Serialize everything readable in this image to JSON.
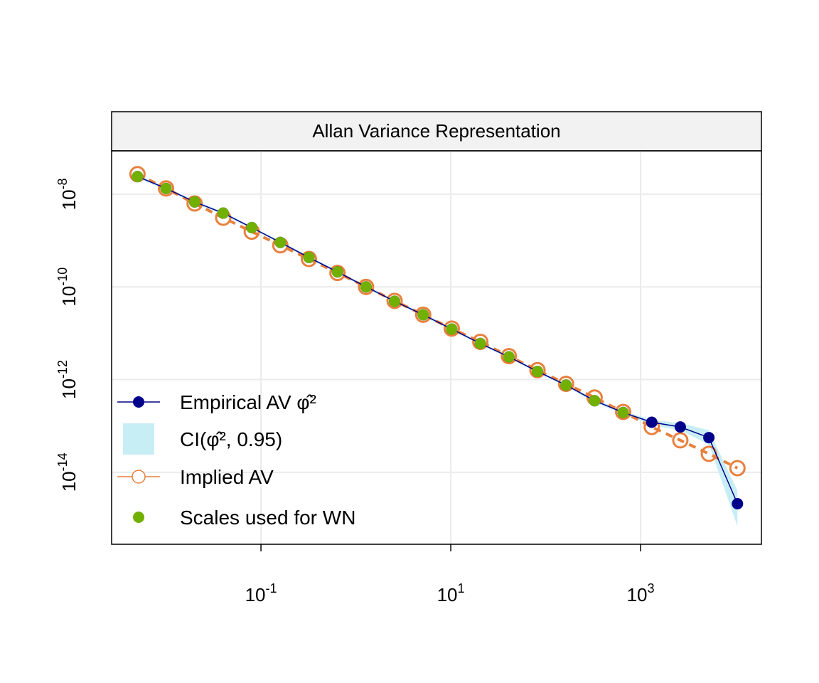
{
  "chart_data": {
    "type": "line",
    "title": "Allan Variance Representation",
    "log_x": true,
    "log_y": true,
    "grid": true,
    "legend": "bottom-left",
    "x": [
      0.005,
      0.01,
      0.02,
      0.04,
      0.08,
      0.16,
      0.32,
      0.64,
      1.28,
      2.56,
      5.12,
      10.24,
      20.48,
      40.96,
      81.92,
      163.84,
      327.68,
      655.36,
      1310.72,
      2621.44,
      5242.88,
      10485.76
    ],
    "xlim": [
      0.00267,
      18750
    ],
    "ylim": [
      2.8e-16,
      8.6e-08
    ],
    "xticks": [
      {
        "value": 0.1,
        "label": "10",
        "exp": "-1"
      },
      {
        "value": 10,
        "label": "10",
        "exp": "1"
      },
      {
        "value": 1000,
        "label": "10",
        "exp": "3"
      }
    ],
    "yticks": [
      {
        "value": 1e-08,
        "label": "10",
        "exp": "-8"
      },
      {
        "value": 1e-10,
        "label": "10",
        "exp": "-10"
      },
      {
        "value": 1e-12,
        "label": "10",
        "exp": "-12"
      },
      {
        "value": 1e-14,
        "label": "10",
        "exp": "-14"
      }
    ],
    "series": [
      {
        "name": "Empirical AV φ̂²",
        "color": "#00008b",
        "values": [
          2.4e-08,
          1.33e-08,
          6.8e-09,
          3.9e-09,
          1.9e-09,
          9.1e-10,
          4.3e-10,
          2.1e-10,
          1e-10,
          4.9e-11,
          2.5e-11,
          1.23e-11,
          6e-12,
          3.1e-12,
          1.5e-12,
          7.6e-13,
          3.5e-13,
          1.95e-13,
          1.2e-13,
          9.5e-14,
          5.6e-14,
          2.1e-15
        ]
      },
      {
        "name": "CI(φ̂², 0.95)",
        "color": "#c8eef5",
        "lower": [
          2.2e-08,
          1.24e-08,
          6.3e-09,
          3.6e-09,
          1.77e-09,
          8.5e-10,
          4e-10,
          1.95e-10,
          9.3e-11,
          4.6e-11,
          2.3e-11,
          1.14e-11,
          5.6e-12,
          2.9e-12,
          1.4e-12,
          7.1e-13,
          3.2e-13,
          1.8e-13,
          1.05e-13,
          8e-14,
          4e-14,
          6.8e-16
        ],
        "upper": [
          2.6e-08,
          1.42e-08,
          7.3e-09,
          4.2e-09,
          2e-09,
          9.7e-10,
          4.6e-10,
          2.25e-10,
          1.07e-10,
          5.2e-11,
          2.7e-11,
          1.32e-11,
          6.4e-12,
          3.3e-12,
          1.6e-12,
          8.1e-13,
          3.8e-13,
          2.1e-13,
          1.35e-13,
          1.15e-13,
          8.1e-14,
          4e-15
        ]
      },
      {
        "name": "Implied AV",
        "color": "#e8803e",
        "values": [
          2.7e-08,
          1.33e-08,
          6.3e-09,
          3.1e-09,
          1.55e-09,
          7.9e-10,
          4e-10,
          2e-10,
          1e-10,
          5e-11,
          2.5e-11,
          1.26e-11,
          6.5e-12,
          3.2e-12,
          1.6e-12,
          8.1e-13,
          4.1e-13,
          2e-13,
          9.5e-14,
          4.9e-14,
          2.5e-14,
          1.23e-14
        ]
      },
      {
        "name": "Scales used for WN",
        "color": "#72b000",
        "values": [
          2.4e-08,
          1.33e-08,
          6.8e-09,
          3.9e-09,
          1.9e-09,
          9.1e-10,
          4.3e-10,
          2.1e-10,
          1e-10,
          4.9e-11,
          2.5e-11,
          1.23e-11,
          6e-12,
          3.1e-12,
          1.5e-12,
          7.6e-13,
          3.5e-13,
          1.95e-13,
          null,
          null,
          null,
          null
        ]
      }
    ]
  }
}
